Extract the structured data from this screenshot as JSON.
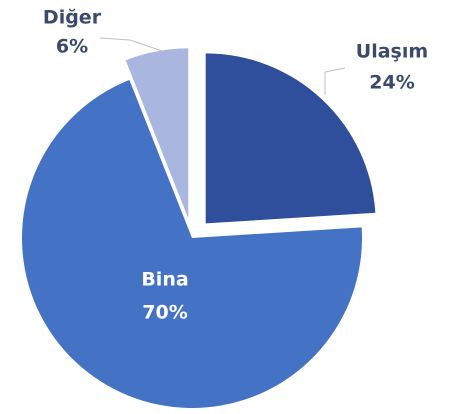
{
  "chart_data": {
    "type": "pie",
    "categories": [
      "Ulaşım",
      "Bina",
      "Diğer"
    ],
    "values": [
      24,
      70,
      6
    ],
    "value_labels": [
      "24%",
      "70%",
      "6%"
    ],
    "colors": [
      "#2f4f9c",
      "#4472c4",
      "#a9b7e0"
    ]
  }
}
